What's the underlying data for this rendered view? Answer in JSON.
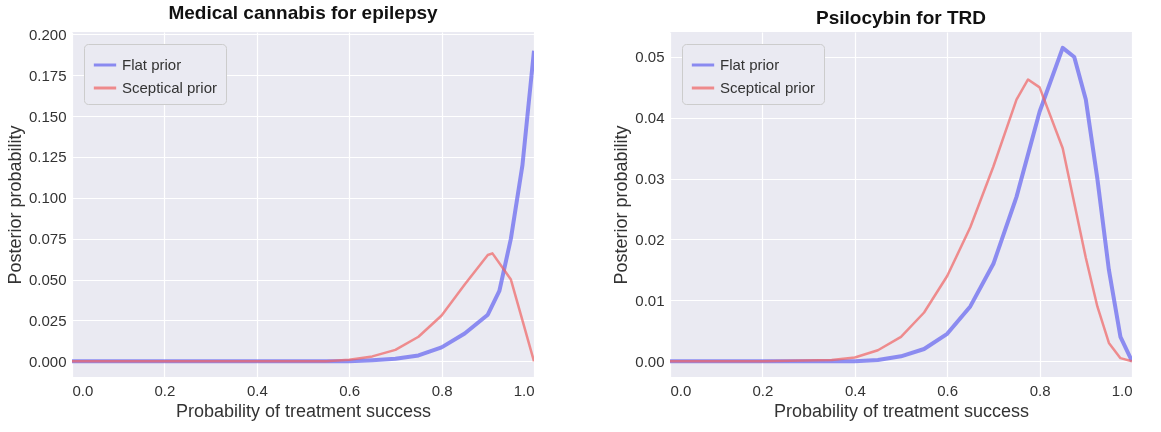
{
  "chart_data": [
    {
      "type": "line",
      "title": "Medical cannabis for epilepsy",
      "xlabel": "Probability of treatment success",
      "ylabel": "Posterior probability",
      "xlim": [
        0,
        1
      ],
      "ylim": [
        -0.0096,
        0.2014
      ],
      "xticks": [
        {
          "value": 0,
          "label": "0.0"
        },
        {
          "value": 0.2,
          "label": "0.2"
        },
        {
          "value": 0.4,
          "label": "0.4"
        },
        {
          "value": 0.6,
          "label": "0.6"
        },
        {
          "value": 0.8,
          "label": "0.8"
        },
        {
          "value": 1,
          "label": "1.0"
        }
      ],
      "yticks": [
        {
          "value": 0,
          "label": "0.000"
        },
        {
          "value": 0.025,
          "label": "0.025"
        },
        {
          "value": 0.05,
          "label": "0.050"
        },
        {
          "value": 0.075,
          "label": "0.075"
        },
        {
          "value": 0.1,
          "label": "0.100"
        },
        {
          "value": 0.125,
          "label": "0.125"
        },
        {
          "value": 0.15,
          "label": "0.150"
        },
        {
          "value": 0.175,
          "label": "0.175"
        },
        {
          "value": 0.2,
          "label": "0.200"
        }
      ],
      "grid": true,
      "legend": "top left",
      "series": [
        {
          "name": "Flat prior",
          "color": "#6262f0",
          "x": [
            0,
            0.2,
            0.4,
            0.6,
            0.65,
            0.7,
            0.75,
            0.8,
            0.85,
            0.9,
            0.925,
            0.95,
            0.975,
            1
          ],
          "values": [
            0,
            0,
            0,
            0,
            0.0006,
            0.0015,
            0.0036,
            0.0085,
            0.017,
            0.0285,
            0.043,
            0.075,
            0.12,
            0.19
          ]
        },
        {
          "name": "Sceptical prior",
          "color": "#f06262",
          "x": [
            0,
            0.2,
            0.4,
            0.55,
            0.6,
            0.65,
            0.7,
            0.75,
            0.8,
            0.85,
            0.9,
            0.91,
            0.95,
            0.975,
            1
          ],
          "values": [
            0,
            0,
            0,
            0,
            0.001,
            0.003,
            0.007,
            0.015,
            0.028,
            0.047,
            0.065,
            0.066,
            0.05,
            0.025,
            0
          ]
        }
      ]
    },
    {
      "type": "line",
      "title": "Psilocybin for TRD",
      "xlabel": "Probability of treatment success",
      "ylabel": "Posterior probability",
      "xlim": [
        0,
        1
      ],
      "ylim": [
        -0.0026,
        0.0541
      ],
      "xticks": [
        {
          "value": 0,
          "label": "0.0"
        },
        {
          "value": 0.2,
          "label": "0.2"
        },
        {
          "value": 0.4,
          "label": "0.4"
        },
        {
          "value": 0.6,
          "label": "0.6"
        },
        {
          "value": 0.8,
          "label": "0.8"
        },
        {
          "value": 1,
          "label": "1.0"
        }
      ],
      "yticks": [
        {
          "value": 0,
          "label": "0.00"
        },
        {
          "value": 0.01,
          "label": "0.01"
        },
        {
          "value": 0.02,
          "label": "0.02"
        },
        {
          "value": 0.03,
          "label": "0.03"
        },
        {
          "value": 0.04,
          "label": "0.04"
        },
        {
          "value": 0.05,
          "label": "0.05"
        }
      ],
      "grid": true,
      "legend": "top left",
      "series": [
        {
          "name": "Flat prior",
          "color": "#6262f0",
          "x": [
            0,
            0.2,
            0.4,
            0.45,
            0.5,
            0.55,
            0.6,
            0.65,
            0.7,
            0.75,
            0.8,
            0.85,
            0.875,
            0.9,
            0.925,
            0.95,
            0.975,
            1
          ],
          "values": [
            0,
            0,
            0,
            0.0002,
            0.0008,
            0.002,
            0.0045,
            0.009,
            0.016,
            0.027,
            0.041,
            0.0515,
            0.05,
            0.043,
            0.03,
            0.015,
            0.004,
            0
          ]
        },
        {
          "name": "Sceptical prior",
          "color": "#f06262",
          "x": [
            0,
            0.2,
            0.35,
            0.4,
            0.45,
            0.5,
            0.55,
            0.6,
            0.65,
            0.7,
            0.75,
            0.775,
            0.8,
            0.85,
            0.9,
            0.925,
            0.95,
            0.975,
            1
          ],
          "values": [
            0,
            0,
            0.0002,
            0.0006,
            0.0018,
            0.004,
            0.008,
            0.014,
            0.022,
            0.032,
            0.043,
            0.0463,
            0.045,
            0.035,
            0.017,
            0.009,
            0.003,
            0.0005,
            0
          ]
        }
      ]
    }
  ]
}
